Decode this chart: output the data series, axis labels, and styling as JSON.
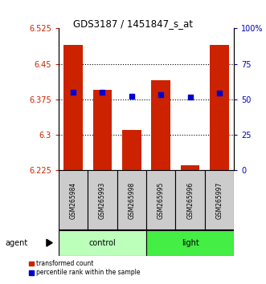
{
  "title": "GDS3187 / 1451847_s_at",
  "samples": [
    "GSM265984",
    "GSM265993",
    "GSM265998",
    "GSM265995",
    "GSM265996",
    "GSM265997"
  ],
  "red_values": [
    6.49,
    6.395,
    6.31,
    6.415,
    6.235,
    6.49
  ],
  "blue_values": [
    6.39,
    6.39,
    6.382,
    6.385,
    6.38,
    6.388
  ],
  "ymin": 6.225,
  "ymax": 6.525,
  "yticks": [
    6.225,
    6.3,
    6.375,
    6.45,
    6.525
  ],
  "right_yticks": [
    0,
    25,
    50,
    75,
    100
  ],
  "right_ylabels": [
    "0",
    "25",
    "50",
    "75",
    "100%"
  ],
  "bar_color": "#CC2200",
  "blue_color": "#0000CC",
  "bar_base": 6.225,
  "bar_width": 0.65,
  "left_label_color": "#CC2200",
  "right_label_color": "#0000BB",
  "legend_red_label": "transformed count",
  "legend_blue_label": "percentile rank within the sample",
  "agent_label": "agent",
  "control_color": "#BBFFBB",
  "light_color": "#44EE44",
  "sample_box_color": "#CCCCCC"
}
